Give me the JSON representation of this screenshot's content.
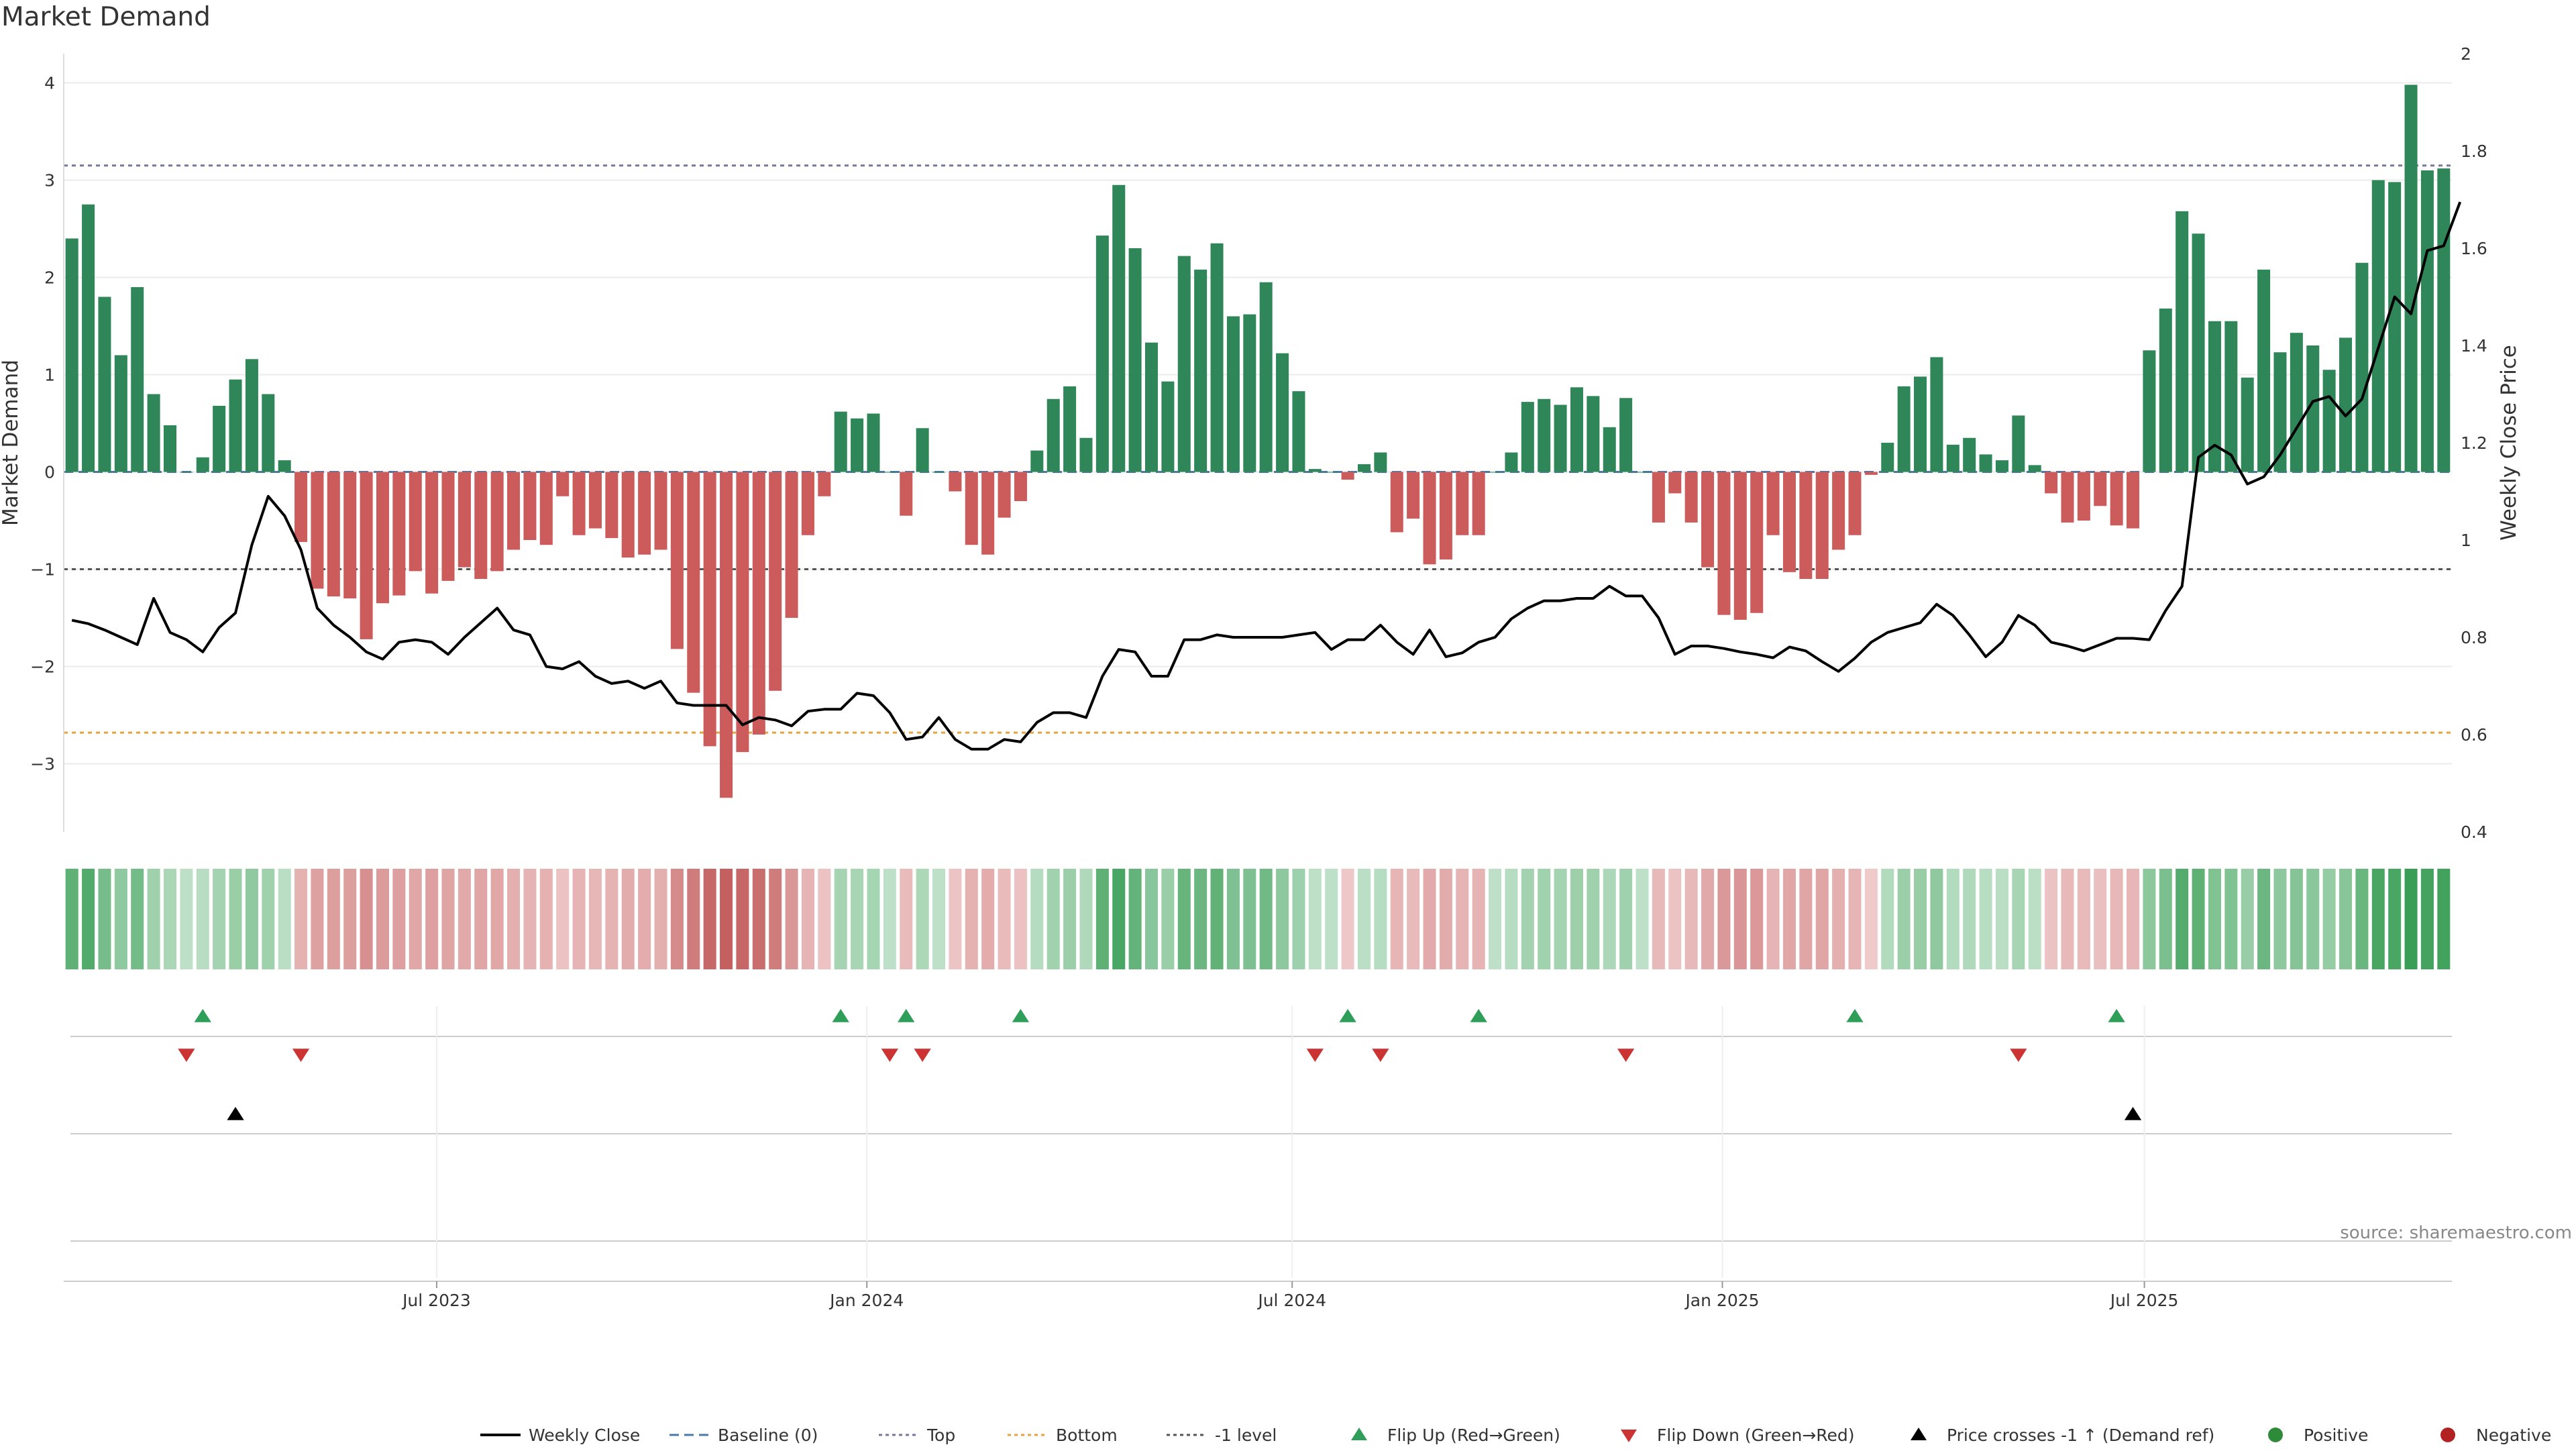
{
  "chart_data": {
    "type": "bar",
    "title": "Market Demand",
    "ylabel": "Market Demand",
    "y2label": "Weekly Close Price",
    "ylim": [
      -3.7,
      4.3
    ],
    "y2lim": [
      0.4,
      2.0
    ],
    "yticks": [
      4,
      3,
      2,
      1,
      0,
      -1,
      -2,
      -3
    ],
    "y2ticks": [
      2,
      1.8,
      1.6,
      1.4,
      1.2,
      1,
      0.8,
      0.6,
      0.4
    ],
    "start_week": "2023-01-14",
    "xticks": [
      {
        "label": "Jul 2023",
        "week": 22.3
      },
      {
        "label": "Jan 2024",
        "week": 48.6
      },
      {
        "label": "Jul 2024",
        "week": 74.6
      },
      {
        "label": "Jan 2025",
        "week": 100.9
      },
      {
        "label": "Jul 2025",
        "week": 126.7
      }
    ],
    "reference_lines": {
      "top": 3.15,
      "bottom": -2.68,
      "minus_one": -1,
      "baseline": 0
    },
    "demand": [
      2.4,
      2.75,
      1.8,
      1.2,
      1.9,
      0.8,
      0.48,
      0,
      0.15,
      0.68,
      0.95,
      1.16,
      0.8,
      0.12,
      -0.72,
      -1.2,
      -1.28,
      -1.3,
      -1.72,
      -1.35,
      -1.27,
      -1.02,
      -1.25,
      -1.12,
      -0.98,
      -1.1,
      -1.02,
      -0.8,
      -0.7,
      -0.75,
      -0.25,
      -0.65,
      -0.58,
      -0.68,
      -0.88,
      -0.85,
      -0.8,
      -1.82,
      -2.27,
      -2.82,
      -3.35,
      -2.88,
      -2.7,
      -2.25,
      -1.5,
      -0.65,
      -0.25,
      0.62,
      0.55,
      0.6,
      0,
      -0.45,
      0.45,
      0,
      -0.2,
      -0.75,
      -0.85,
      -0.47,
      -0.3,
      0.22,
      0.75,
      0.88,
      0.35,
      2.43,
      2.95,
      2.3,
      1.33,
      0.93,
      2.22,
      2.08,
      2.35,
      1.6,
      1.62,
      1.95,
      1.22,
      0.83,
      0.03,
      0,
      -0.08,
      0.08,
      0.2,
      -0.62,
      -0.48,
      -0.95,
      -0.9,
      -0.65,
      -0.65,
      0,
      0.2,
      0.72,
      0.75,
      0.69,
      0.87,
      0.78,
      0.46,
      0.76,
      0,
      -0.52,
      -0.22,
      -0.52,
      -0.98,
      -1.47,
      -1.52,
      -1.45,
      -0.65,
      -1.03,
      -1.1,
      -1.1,
      -0.8,
      -0.65,
      -0.03,
      0.3,
      0.88,
      0.98,
      1.18,
      0.28,
      0.35,
      0.18,
      0.12,
      0.58,
      0.07,
      -0.22,
      -0.52,
      -0.5,
      -0.35,
      -0.55,
      -0.58,
      1.25,
      1.68,
      2.68,
      2.45,
      1.55,
      1.55,
      0.97,
      2.08,
      1.23,
      1.43,
      1.3,
      1.05,
      1.38,
      2.15,
      3.0,
      2.98,
      3.98,
      3.1,
      3.12
    ],
    "weekly_close": [
      0.835,
      0.828,
      0.815,
      0.8,
      0.785,
      0.88,
      0.81,
      0.795,
      0.77,
      0.82,
      0.85,
      0.99,
      1.09,
      1.05,
      0.98,
      0.86,
      0.825,
      0.8,
      0.77,
      0.755,
      0.79,
      0.795,
      0.79,
      0.765,
      0.8,
      0.83,
      0.86,
      0.815,
      0.805,
      0.74,
      0.735,
      0.75,
      0.72,
      0.705,
      0.71,
      0.695,
      0.71,
      0.665,
      0.66,
      0.66,
      0.66,
      0.62,
      0.635,
      0.63,
      0.618,
      0.648,
      0.652,
      0.652,
      0.685,
      0.68,
      0.645,
      0.59,
      0.595,
      0.635,
      0.59,
      0.57,
      0.57,
      0.59,
      0.585,
      0.625,
      0.645,
      0.645,
      0.635,
      0.72,
      0.775,
      0.77,
      0.72,
      0.72,
      0.795,
      0.795,
      0.805,
      0.8,
      0.8,
      0.8,
      0.8,
      0.805,
      0.81,
      0.775,
      0.795,
      0.795,
      0.825,
      0.79,
      0.765,
      0.815,
      0.76,
      0.768,
      0.79,
      0.8,
      0.838,
      0.86,
      0.875,
      0.875,
      0.88,
      0.88,
      0.905,
      0.885,
      0.885,
      0.84,
      0.765,
      0.782,
      0.782,
      0.777,
      0.77,
      0.765,
      0.758,
      0.78,
      0.772,
      0.75,
      0.73,
      0.757,
      0.79,
      0.81,
      0.82,
      0.83,
      0.868,
      0.845,
      0.805,
      0.76,
      0.79,
      0.845,
      0.825,
      0.79,
      0.782,
      0.772,
      0.785,
      0.798,
      0.798,
      0.795,
      0.855,
      0.905,
      1.17,
      1.195,
      1.175,
      1.115,
      1.13,
      1.175,
      1.23,
      1.285,
      1.295,
      1.255,
      1.29,
      1.395,
      1.5,
      1.465,
      1.595,
      1.605,
      1.695
    ],
    "flip_up_weeks": [
      8,
      47,
      51,
      58,
      78,
      86,
      109,
      125
    ],
    "flip_down_weeks": [
      7,
      14,
      50,
      52,
      76,
      80,
      95,
      119
    ],
    "price_cross_weeks": [
      10,
      126
    ],
    "legend": [
      {
        "key": "weekly_close",
        "label": "Weekly Close",
        "color": "#000000"
      },
      {
        "key": "baseline",
        "label": "Baseline (0)",
        "color": "#4c78a8"
      },
      {
        "key": "top",
        "label": "Top",
        "color": "#777799"
      },
      {
        "key": "bottom",
        "label": "Bottom",
        "color": "#e6a23c"
      },
      {
        "key": "minus_one",
        "label": "-1 level",
        "color": "#555555"
      },
      {
        "key": "flip_up",
        "label": "Flip Up (Red→Green)",
        "color": "#2e9e58"
      },
      {
        "key": "flip_down",
        "label": "Flip Down (Green→Red)",
        "color": "#cc3333"
      },
      {
        "key": "price_cross",
        "label": "Price crosses -1 ↑ (Demand ref)",
        "color": "#000000"
      },
      {
        "key": "positive",
        "label": "Positive",
        "color": "#2e8b3a"
      },
      {
        "key": "negative",
        "label": "Negative",
        "color": "#b22222"
      }
    ],
    "colors": {
      "positive_bar": "#2e8659",
      "negative_bar": "#cc5b5b",
      "line": "#000000"
    }
  },
  "source": "source: sharemaestro.com"
}
